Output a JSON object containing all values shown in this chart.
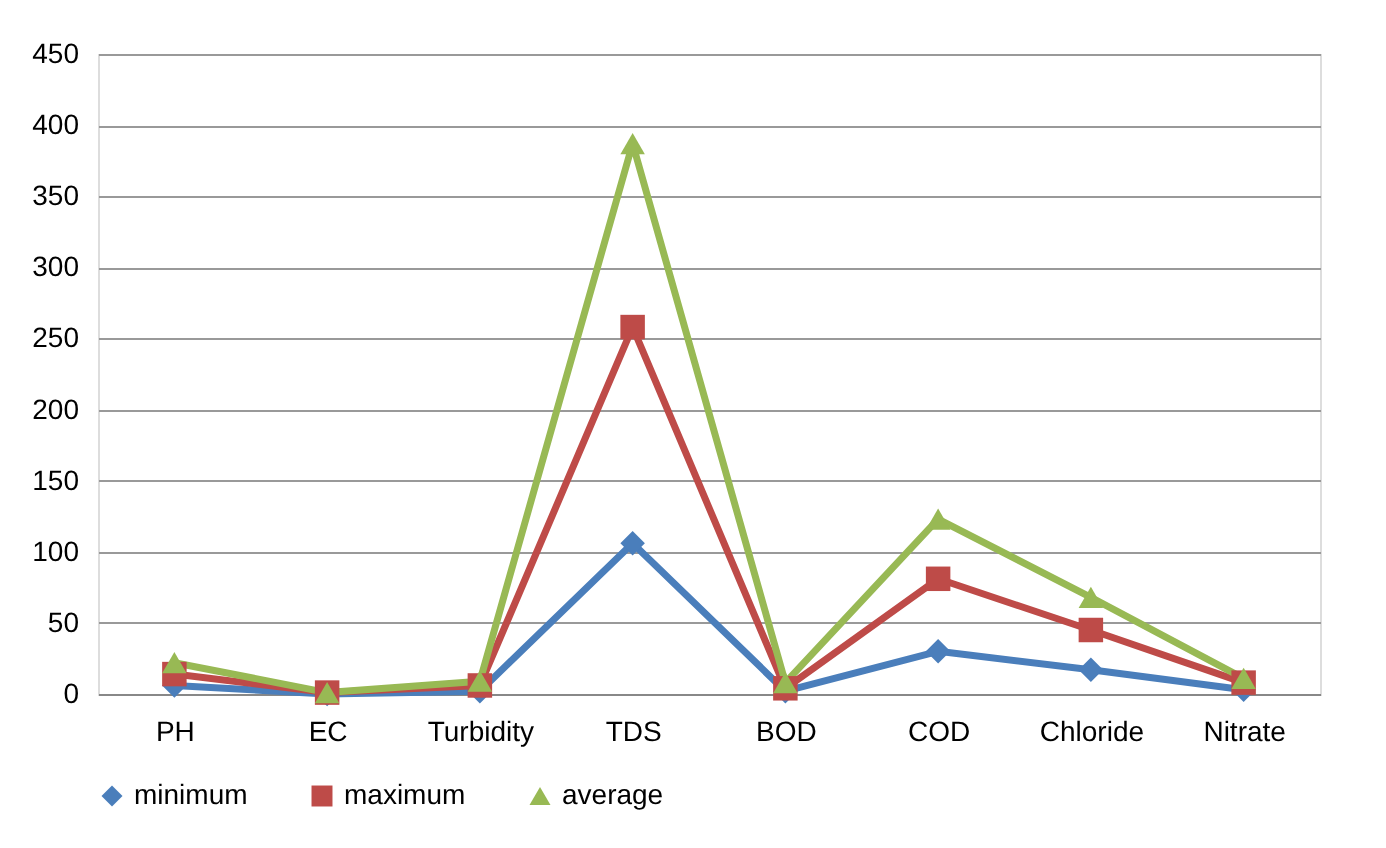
{
  "chart_data": {
    "type": "line",
    "categories": [
      "PH",
      "EC",
      "Turbidity",
      "TDS",
      "BOD",
      "COD",
      "Chloride",
      "Nitrate"
    ],
    "series": [
      {
        "name": "minimum",
        "color": "#4a7ebb",
        "marker": "diamond",
        "values": [
          6,
          0,
          2,
          106,
          2,
          30,
          17,
          3
        ]
      },
      {
        "name": "maximum",
        "color": "#be4b48",
        "marker": "square",
        "values": [
          14,
          1,
          6,
          258,
          4,
          81,
          45,
          8
        ]
      },
      {
        "name": "average",
        "color": "#98b954",
        "marker": "triangle",
        "values": [
          22,
          1,
          9,
          387,
          8,
          123,
          68,
          11
        ]
      }
    ],
    "ylim": [
      0,
      450
    ],
    "yticks": [
      0,
      50,
      100,
      150,
      200,
      250,
      300,
      350,
      400,
      450
    ],
    "grid": "y",
    "legend": "bottom",
    "line_style": "solid"
  }
}
